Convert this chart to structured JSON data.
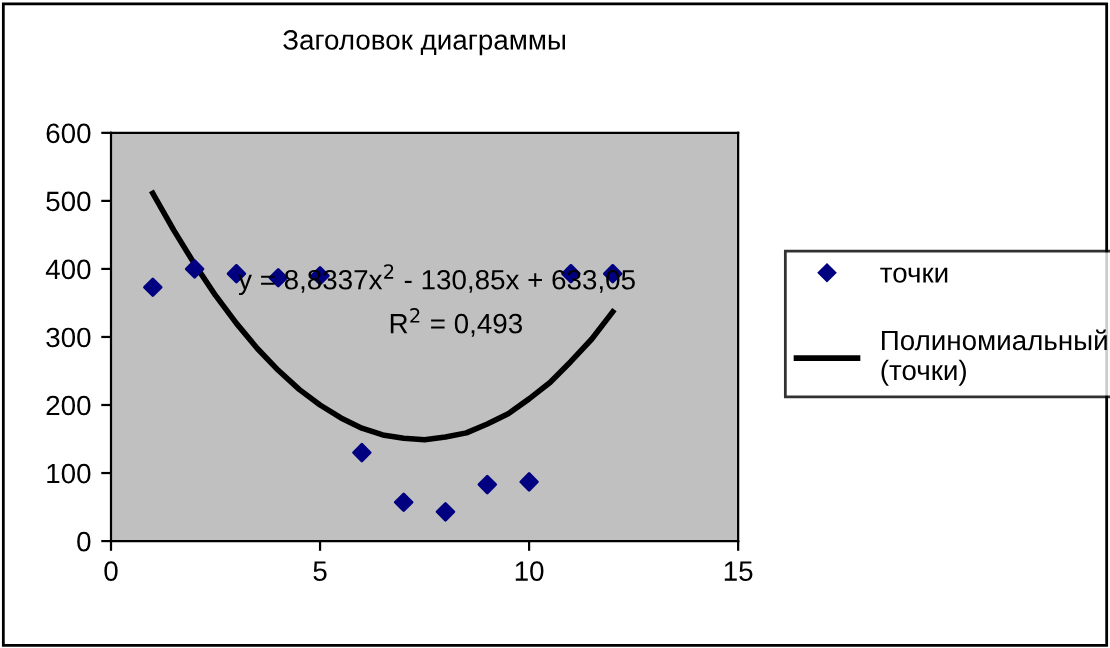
{
  "chart_data": {
    "type": "scatter",
    "title": "Заголовок диаграммы",
    "xlim": [
      0,
      15
    ],
    "xticks": [
      0,
      5,
      10,
      15
    ],
    "ylim": [
      0,
      600
    ],
    "yticks": [
      0,
      100,
      200,
      300,
      400,
      500,
      600
    ],
    "grid": false,
    "legend": "right",
    "series": [
      {
        "name": "точки",
        "marker": "diamond",
        "color": "#000080",
        "x": [
          1,
          2,
          3,
          4,
          5,
          6,
          7,
          8,
          9,
          10,
          11,
          12
        ],
        "values": [
          373,
          400,
          393,
          387,
          390,
          130,
          57,
          43,
          83,
          87,
          393,
          393
        ]
      },
      {
        "name": "Полиномиальный (точки)",
        "type": "line",
        "marker": "none",
        "color": "#000000",
        "x": [
          1,
          1.5,
          2,
          2.5,
          3,
          3.5,
          4,
          4.5,
          5,
          5.5,
          6,
          6.5,
          7,
          7.5,
          8,
          8.5,
          9,
          9.5,
          10,
          10.5,
          11,
          11.5,
          12
        ],
        "values": [
          511,
          457,
          407,
          361,
          320,
          283,
          251,
          223,
          200,
          181,
          166,
          156,
          151,
          149,
          153,
          159,
          172,
          187,
          209,
          233,
          264,
          297,
          337
        ]
      }
    ],
    "annotations": [
      "y = 8,8337x$^{2}$ - 130,85x + 633,05",
      "R$^{2}$ = 0,493"
    ]
  }
}
